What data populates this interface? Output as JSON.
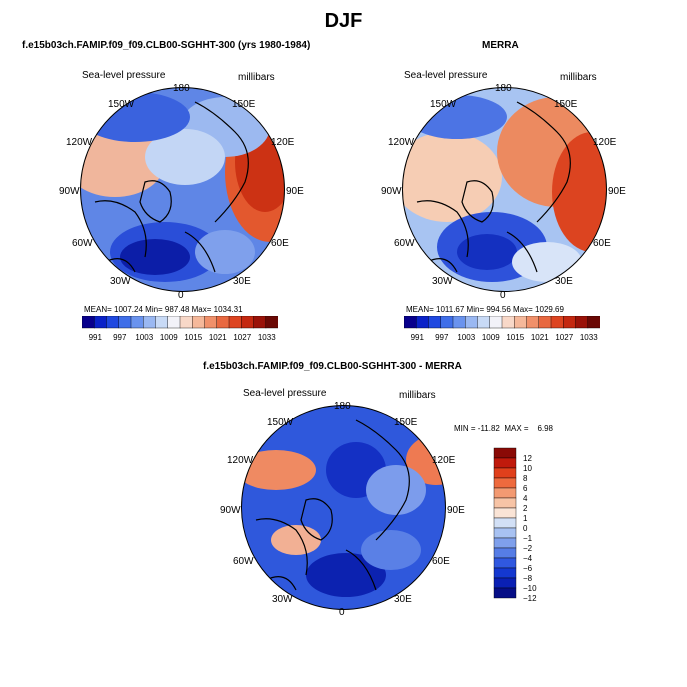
{
  "page": {
    "title": "DJF"
  },
  "panels": [
    {
      "id": "model",
      "title": "f.e15b03ch.FAMIP.f09_f09.CLB00-SGHHT-300 (yrs 1980-1984)",
      "variable": "Sea-level pressure",
      "units": "millibars",
      "stats": "MEAN= 1007.24   Min= 987.48   Max= 1034.31"
    },
    {
      "id": "merra",
      "title": "MERRA",
      "variable": "Sea-level pressure",
      "units": "millibars",
      "stats": "MEAN= 1011.67   Min= 994.56   Max= 1029.69"
    },
    {
      "id": "diff",
      "title": "f.e15b03ch.FAMIP.f09_f09.CLB00-SGHHT-300 - MERRA",
      "variable": "Sea-level pressure",
      "units": "millibars",
      "stats": "MIN = -11.82  MAX =    6.98"
    }
  ],
  "lon_labels": {
    "top": "180",
    "upper_left": "150W",
    "upper_right": "150E",
    "left_upper": "120W",
    "right_upper": "120E",
    "left": "90W",
    "right": "90E",
    "left_lower": "60W",
    "right_lower": "60E",
    "lower_left": "30W",
    "lower_right": "30E",
    "bottom": "0"
  },
  "colorbar_abs": {
    "labels": [
      "991",
      "997",
      "1003",
      "1009",
      "1015",
      "1021",
      "1027",
      "1033"
    ],
    "colors": [
      "#08008c",
      "#0a22c8",
      "#1f48e0",
      "#3f6ee8",
      "#6a93ee",
      "#9ab8f2",
      "#c8daf6",
      "#f2f2f8",
      "#f8d8c8",
      "#f5b89a",
      "#f0906a",
      "#e86840",
      "#dd4420",
      "#c42810",
      "#9a1208",
      "#6a0804"
    ]
  },
  "colorbar_diff": {
    "labels": [
      "12",
      "10",
      "8",
      "6",
      "4",
      "2",
      "1",
      "0",
      "−1",
      "−2",
      "−4",
      "−6",
      "−8",
      "−10",
      "−12"
    ],
    "colors": [
      "#8a0a06",
      "#c01a0c",
      "#e0401c",
      "#ee6a3e",
      "#f39a72",
      "#f7c4a6",
      "#fae4d6",
      "#d2e0f6",
      "#a8c2f2",
      "#7fa0ec",
      "#567de6",
      "#3058e0",
      "#1438d0",
      "#0a20b4",
      "#060e86"
    ]
  },
  "chart_data": [
    {
      "type": "heatmap",
      "projection": "polar stereographic (north pole)",
      "title": "f.e15b03ch.FAMIP.f09_f09.CLB00-SGHHT-300 (yrs 1980-1984)",
      "variable": "Sea-level pressure",
      "units": "millibars",
      "mean": 1007.24,
      "min": 987.48,
      "max": 1034.31,
      "contour_levels": [
        991,
        994,
        997,
        1000,
        1003,
        1006,
        1009,
        1012,
        1015,
        1018,
        1021,
        1024,
        1027,
        1030,
        1033
      ]
    },
    {
      "type": "heatmap",
      "projection": "polar stereographic (north pole)",
      "title": "MERRA",
      "variable": "Sea-level pressure",
      "units": "millibars",
      "mean": 1011.67,
      "min": 994.56,
      "max": 1029.69,
      "contour_levels": [
        991,
        994,
        997,
        1000,
        1003,
        1006,
        1009,
        1012,
        1015,
        1018,
        1021,
        1024,
        1027,
        1030,
        1033
      ]
    },
    {
      "type": "heatmap",
      "projection": "polar stereographic (north pole)",
      "title": "f.e15b03ch.FAMIP.f09_f09.CLB00-SGHHT-300 - MERRA",
      "variable": "Sea-level pressure",
      "units": "millibars",
      "min": -11.82,
      "max": 6.98,
      "contour_levels": [
        -12,
        -10,
        -8,
        -6,
        -4,
        -2,
        -1,
        0,
        1,
        2,
        4,
        6,
        8,
        10,
        12
      ]
    }
  ]
}
